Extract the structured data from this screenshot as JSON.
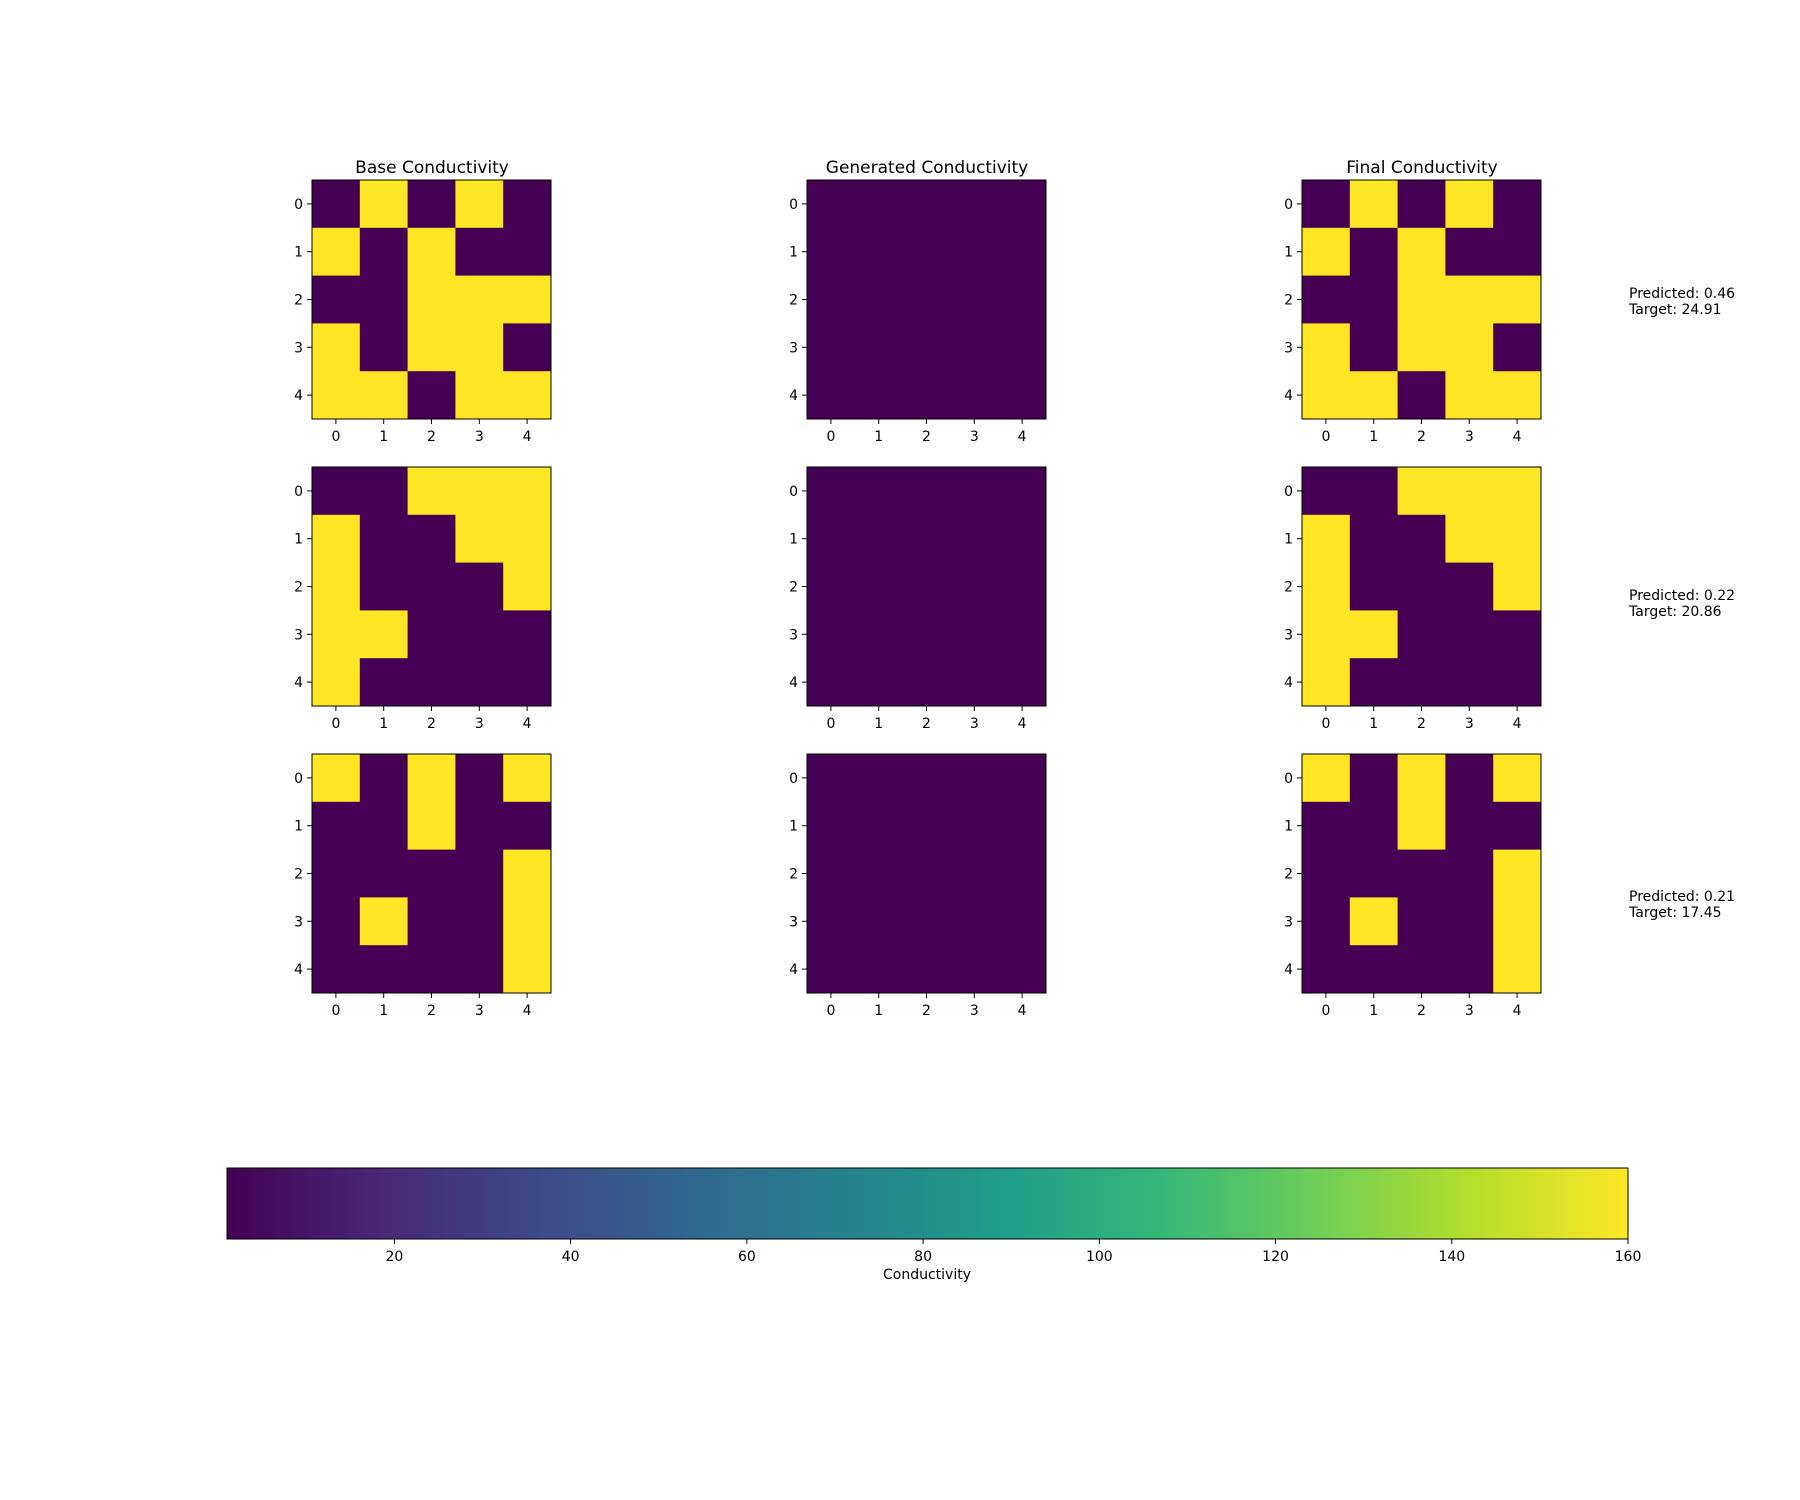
{
  "chart_data": {
    "type": "heatmap",
    "colormap": "viridis",
    "grid": false,
    "x_ticks": [
      "0",
      "1",
      "2",
      "3",
      "4"
    ],
    "y_ticks": [
      "0",
      "1",
      "2",
      "3",
      "4"
    ],
    "columns": [
      {
        "title": "Base Conductivity"
      },
      {
        "title": "Generated Conductivity"
      },
      {
        "title": "Final Conductivity"
      }
    ],
    "rows": [
      {
        "base": [
          [
            1,
            160,
            1,
            160,
            1
          ],
          [
            160,
            1,
            160,
            1,
            1
          ],
          [
            1,
            1,
            160,
            160,
            160
          ],
          [
            160,
            1,
            160,
            160,
            1
          ],
          [
            160,
            160,
            1,
            160,
            160
          ]
        ],
        "generated": [
          [
            1,
            1,
            1,
            1,
            1
          ],
          [
            1,
            1,
            1,
            1,
            1
          ],
          [
            1,
            1,
            1,
            1,
            1
          ],
          [
            1,
            1,
            1,
            1,
            1
          ],
          [
            1,
            1,
            1,
            1,
            1
          ]
        ],
        "final": [
          [
            1,
            160,
            1,
            160,
            1
          ],
          [
            160,
            1,
            160,
            1,
            1
          ],
          [
            1,
            1,
            160,
            160,
            160
          ],
          [
            160,
            1,
            160,
            160,
            1
          ],
          [
            160,
            160,
            1,
            160,
            160
          ]
        ],
        "predicted_label": "Predicted: 0.46",
        "target_label": "Target: 24.91"
      },
      {
        "base": [
          [
            1,
            1,
            160,
            160,
            160
          ],
          [
            160,
            1,
            1,
            160,
            160
          ],
          [
            160,
            1,
            1,
            1,
            160
          ],
          [
            160,
            160,
            1,
            1,
            1
          ],
          [
            160,
            1,
            1,
            1,
            1
          ]
        ],
        "generated": [
          [
            1,
            1,
            1,
            1,
            1
          ],
          [
            1,
            1,
            1,
            1,
            1
          ],
          [
            1,
            1,
            1,
            1,
            1
          ],
          [
            1,
            1,
            1,
            1,
            1
          ],
          [
            1,
            1,
            1,
            1,
            1
          ]
        ],
        "final": [
          [
            1,
            1,
            160,
            160,
            160
          ],
          [
            160,
            1,
            1,
            160,
            160
          ],
          [
            160,
            1,
            1,
            1,
            160
          ],
          [
            160,
            160,
            1,
            1,
            1
          ],
          [
            160,
            1,
            1,
            1,
            1
          ]
        ],
        "predicted_label": "Predicted: 0.22",
        "target_label": "Target: 20.86"
      },
      {
        "base": [
          [
            160,
            1,
            160,
            1,
            160
          ],
          [
            1,
            1,
            160,
            1,
            1
          ],
          [
            1,
            1,
            1,
            1,
            160
          ],
          [
            1,
            160,
            1,
            1,
            160
          ],
          [
            1,
            1,
            1,
            1,
            160
          ]
        ],
        "generated": [
          [
            1,
            1,
            1,
            1,
            1
          ],
          [
            1,
            1,
            1,
            1,
            1
          ],
          [
            1,
            1,
            1,
            1,
            1
          ],
          [
            1,
            1,
            1,
            1,
            1
          ],
          [
            1,
            1,
            1,
            1,
            1
          ]
        ],
        "final": [
          [
            160,
            1,
            160,
            1,
            160
          ],
          [
            1,
            1,
            160,
            1,
            1
          ],
          [
            1,
            1,
            1,
            1,
            160
          ],
          [
            1,
            160,
            1,
            1,
            160
          ],
          [
            1,
            1,
            1,
            1,
            160
          ]
        ],
        "predicted_label": "Predicted: 0.21",
        "target_label": "Target: 17.45"
      }
    ],
    "colorbar": {
      "label": "Conductivity",
      "range": [
        1,
        160
      ],
      "ticks": [
        20,
        40,
        60,
        80,
        100,
        120,
        140,
        160
      ],
      "colors": [
        "#440154",
        "#482878",
        "#3e4989",
        "#31688e",
        "#26828e",
        "#1f9e89",
        "#35b779",
        "#6ece58",
        "#b5de2b",
        "#fde725"
      ]
    }
  }
}
